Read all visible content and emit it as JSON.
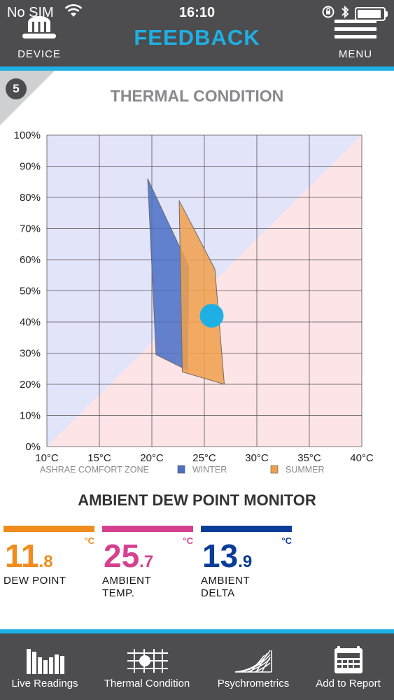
{
  "status_bar": {
    "carrier": "No SIM",
    "time": "16:10"
  },
  "header": {
    "device_label": "DEVICE",
    "title": "FEEDBACK",
    "menu_label": "MENU"
  },
  "step": "5",
  "section_title": "THERMAL CONDITION",
  "chart_data": {
    "type": "area",
    "title": "THERMAL CONDITION",
    "x_ticks": [
      "10°C",
      "15°C",
      "20°C",
      "25°C",
      "30°C",
      "35°C",
      "40°C"
    ],
    "y_ticks": [
      "0%",
      "10%",
      "20%",
      "30%",
      "40%",
      "50%",
      "60%",
      "70%",
      "80%",
      "90%",
      "100%"
    ],
    "xlim": [
      10,
      40
    ],
    "ylim": [
      0,
      100
    ],
    "grid": true,
    "legend": {
      "title": "ASHRAE COMFORT ZONE",
      "items": [
        "WINTER",
        "SUMMER"
      ],
      "placement": "bottom"
    },
    "series": [
      {
        "name": "WINTER",
        "color": "#4a6fc4",
        "polygon": [
          [
            19.6,
            86
          ],
          [
            23.5,
            58
          ],
          [
            23.4,
            24.5
          ],
          [
            20.4,
            29.5
          ]
        ]
      },
      {
        "name": "SUMMER",
        "color": "#f0a04b",
        "polygon": [
          [
            22.6,
            79
          ],
          [
            26.0,
            57
          ],
          [
            26.9,
            20
          ],
          [
            22.9,
            24
          ]
        ]
      }
    ],
    "current_reading": {
      "temperature": 25.7,
      "humidity": 42,
      "color": "#1eb0e4"
    },
    "background_colors": {
      "upper": "#e2e4fa",
      "lower": "#fde4e6"
    }
  },
  "dew_point_monitor": {
    "title": "AMBIENT DEW POINT MONITOR",
    "metrics": [
      {
        "int": "11",
        "dec": ".8",
        "unit": "°C",
        "label_line1": "DEW POINT",
        "label_line2": "",
        "color": "#f08c1e"
      },
      {
        "int": "25",
        "dec": ".7",
        "unit": "°C",
        "label_line1": "AMBIENT",
        "label_line2": "TEMP.",
        "color": "#d6418f"
      },
      {
        "int": "13",
        "dec": ".9",
        "unit": "°C",
        "label_line1": "AMBIENT",
        "label_line2": "DELTA",
        "color": "#0a3d98"
      }
    ]
  },
  "tabs": [
    {
      "label": "Live Readings",
      "icon": "bar-chart-icon"
    },
    {
      "label": "Thermal Condition",
      "icon": "thermal-grid-icon"
    },
    {
      "label": "Psychrometrics",
      "icon": "psychrometric-chart-icon"
    },
    {
      "label": "Add to Report",
      "icon": "report-icon"
    }
  ]
}
